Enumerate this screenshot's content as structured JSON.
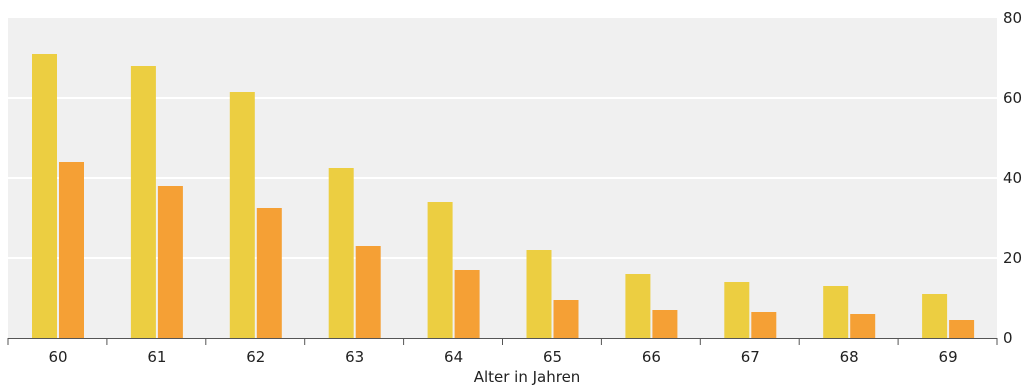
{
  "chart_data": {
    "type": "bar",
    "title": "",
    "xlabel": "Alter in Jahren",
    "ylabel": "",
    "categories": [
      "60",
      "61",
      "62",
      "63",
      "64",
      "65",
      "66",
      "67",
      "68",
      "69"
    ],
    "series": [
      {
        "values": [
          71,
          68,
          61.5,
          42.5,
          34,
          22,
          16,
          14,
          13,
          11
        ],
        "color": "#ecce41"
      },
      {
        "values": [
          44,
          38,
          32.5,
          23,
          17,
          9.5,
          7,
          6.5,
          6,
          4.5
        ],
        "color": "#f5a035"
      }
    ],
    "ylim": [
      0,
      80
    ],
    "yticks": [
      "0",
      "20",
      "40",
      "60",
      "80"
    ],
    "y_axis_position": "right",
    "grid": true,
    "plot_background": "#f0f0f0",
    "gridline_color": "#ffffff",
    "axis_color": "#555555"
  }
}
